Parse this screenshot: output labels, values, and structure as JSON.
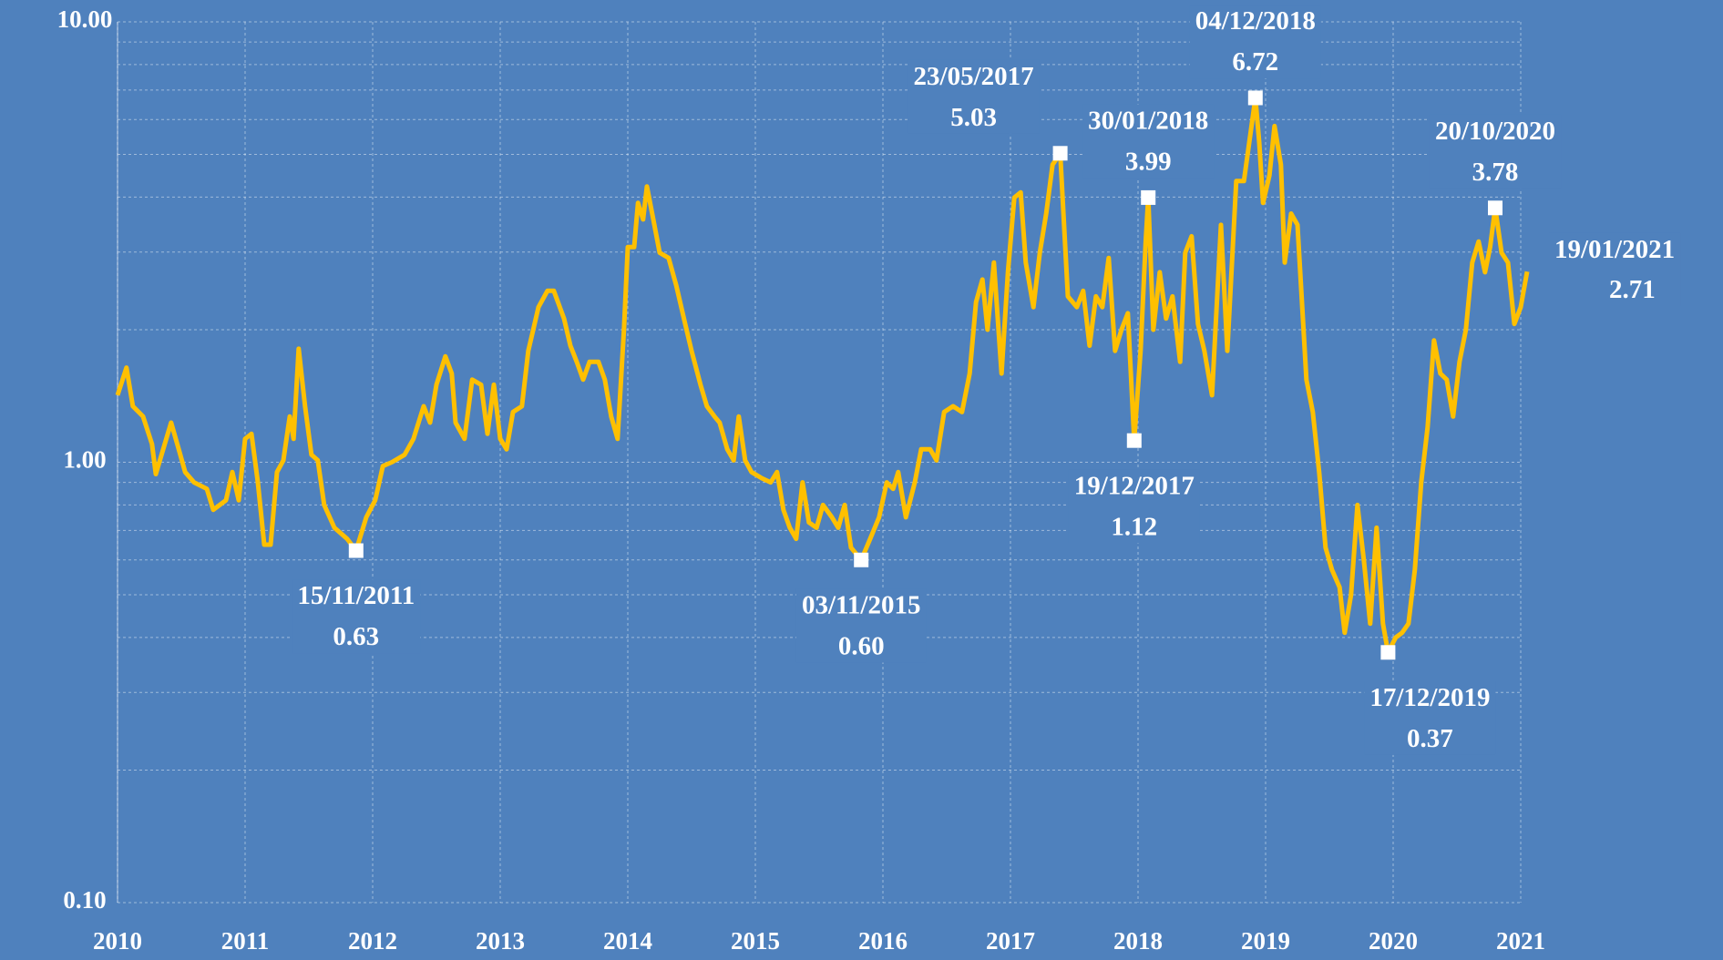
{
  "chart_data": {
    "type": "line",
    "log_y": true,
    "grid": true,
    "background": "#4f81bd",
    "xlim": [
      2010,
      2021.05
    ],
    "xticks": [
      2010,
      2011,
      2012,
      2013,
      2014,
      2015,
      2016,
      2017,
      2018,
      2019,
      2020,
      2021
    ],
    "ylim": [
      0.1,
      10
    ],
    "yticks": [
      {
        "value": 0.1,
        "label": "0.10"
      },
      {
        "value": 1,
        "label": "1.00"
      },
      {
        "value": 10,
        "label": "10.00"
      }
    ],
    "yminorticks": [
      0.2,
      0.3,
      0.4,
      0.5,
      0.6,
      0.7,
      0.8,
      0.9,
      2,
      3,
      4,
      5,
      6,
      7,
      8,
      9
    ],
    "x": [
      2010.0,
      2010.07,
      2010.12,
      2010.2,
      2010.27,
      2010.3,
      2010.37,
      2010.42,
      2010.48,
      2010.53,
      2010.6,
      2010.7,
      2010.75,
      2010.85,
      2010.9,
      2010.95,
      2011.0,
      2011.05,
      2011.1,
      2011.15,
      2011.2,
      2011.25,
      2011.3,
      2011.35,
      2011.38,
      2011.42,
      2011.47,
      2011.52,
      2011.57,
      2011.62,
      2011.7,
      2011.8,
      2011.87,
      2011.95,
      2012.02,
      2012.08,
      2012.15,
      2012.25,
      2012.32,
      2012.4,
      2012.45,
      2012.5,
      2012.57,
      2012.62,
      2012.65,
      2012.72,
      2012.78,
      2012.85,
      2012.9,
      2012.95,
      2013.0,
      2013.05,
      2013.1,
      2013.17,
      2013.22,
      2013.3,
      2013.37,
      2013.42,
      2013.5,
      2013.55,
      2013.6,
      2013.65,
      2013.7,
      2013.77,
      2013.82,
      2013.87,
      2013.92,
      2013.97,
      2014.0,
      2014.05,
      2014.08,
      2014.12,
      2014.15,
      2014.2,
      2014.25,
      2014.32,
      2014.38,
      2014.45,
      2014.5,
      2014.57,
      2014.62,
      2014.68,
      2014.72,
      2014.78,
      2014.83,
      2014.87,
      2014.92,
      2014.97,
      2015.05,
      2015.12,
      2015.17,
      2015.22,
      2015.27,
      2015.32,
      2015.37,
      2015.42,
      2015.48,
      2015.53,
      2015.6,
      2015.65,
      2015.7,
      2015.75,
      2015.83,
      2015.9,
      2015.97,
      2016.03,
      2016.08,
      2016.12,
      2016.18,
      2016.25,
      2016.3,
      2016.37,
      2016.42,
      2016.48,
      2016.55,
      2016.62,
      2016.68,
      2016.73,
      2016.78,
      2016.82,
      2016.87,
      2016.93,
      2016.98,
      2017.03,
      2017.08,
      2017.12,
      2017.18,
      2017.23,
      2017.28,
      2017.33,
      2017.39,
      2017.45,
      2017.52,
      2017.57,
      2017.62,
      2017.67,
      2017.72,
      2017.77,
      2017.82,
      2017.87,
      2017.92,
      2017.97,
      2018.02,
      2018.06,
      2018.08,
      2018.12,
      2018.17,
      2018.22,
      2018.27,
      2018.33,
      2018.37,
      2018.42,
      2018.47,
      2018.52,
      2018.58,
      2018.65,
      2018.7,
      2018.77,
      2018.83,
      2018.92,
      2018.95,
      2018.98,
      2019.03,
      2019.07,
      2019.12,
      2019.15,
      2019.2,
      2019.25,
      2019.32,
      2019.37,
      2019.42,
      2019.47,
      2019.52,
      2019.58,
      2019.62,
      2019.67,
      2019.72,
      2019.77,
      2019.82,
      2019.87,
      2019.92,
      2019.96,
      2020.02,
      2020.07,
      2020.12,
      2020.17,
      2020.22,
      2020.27,
      2020.32,
      2020.37,
      2020.42,
      2020.47,
      2020.52,
      2020.57,
      2020.62,
      2020.67,
      2020.72,
      2020.76,
      2020.8,
      2020.85,
      2020.9,
      2020.95,
      2021.0,
      2021.05
    ],
    "series": [
      {
        "color": "#ffc000",
        "values": [
          1.42,
          1.64,
          1.34,
          1.27,
          1.1,
          0.94,
          1.1,
          1.23,
          1.07,
          0.95,
          0.9,
          0.87,
          0.78,
          0.82,
          0.95,
          0.82,
          1.13,
          1.16,
          0.9,
          0.65,
          0.65,
          0.95,
          1.01,
          1.27,
          1.13,
          1.81,
          1.34,
          1.04,
          1.01,
          0.8,
          0.71,
          0.67,
          0.63,
          0.75,
          0.82,
          0.98,
          1.0,
          1.04,
          1.13,
          1.34,
          1.23,
          1.5,
          1.74,
          1.59,
          1.23,
          1.13,
          1.54,
          1.5,
          1.16,
          1.5,
          1.13,
          1.07,
          1.3,
          1.34,
          1.79,
          2.25,
          2.45,
          2.45,
          2.12,
          1.84,
          1.69,
          1.54,
          1.69,
          1.69,
          1.54,
          1.27,
          1.13,
          2.0,
          3.08,
          3.08,
          3.88,
          3.56,
          4.23,
          3.56,
          2.99,
          2.91,
          2.52,
          2.06,
          1.79,
          1.5,
          1.34,
          1.27,
          1.23,
          1.07,
          1.01,
          1.27,
          1.01,
          0.95,
          0.92,
          0.9,
          0.95,
          0.78,
          0.71,
          0.67,
          0.9,
          0.73,
          0.71,
          0.8,
          0.75,
          0.71,
          0.8,
          0.64,
          0.6,
          0.67,
          0.75,
          0.9,
          0.87,
          0.95,
          0.75,
          0.9,
          1.07,
          1.07,
          1.01,
          1.3,
          1.34,
          1.3,
          1.59,
          2.31,
          2.6,
          2.0,
          2.84,
          1.59,
          2.7,
          3.99,
          4.1,
          2.84,
          2.25,
          2.99,
          3.67,
          4.74,
          5.03,
          2.38,
          2.25,
          2.45,
          1.84,
          2.38,
          2.25,
          2.91,
          1.79,
          2.0,
          2.18,
          1.12,
          1.79,
          3.17,
          3.99,
          2.0,
          2.7,
          2.12,
          2.38,
          1.69,
          2.99,
          3.26,
          2.06,
          1.79,
          1.42,
          3.46,
          1.79,
          4.35,
          4.35,
          6.72,
          5.33,
          3.88,
          4.48,
          5.8,
          4.74,
          2.84,
          3.67,
          3.46,
          1.54,
          1.3,
          0.95,
          0.64,
          0.57,
          0.52,
          0.41,
          0.5,
          0.8,
          0.6,
          0.43,
          0.71,
          0.43,
          0.37,
          0.4,
          0.41,
          0.43,
          0.57,
          0.9,
          1.2,
          1.89,
          1.59,
          1.54,
          1.27,
          1.69,
          2.0,
          2.84,
          3.17,
          2.7,
          3.08,
          3.78,
          2.99,
          2.84,
          2.06,
          2.25,
          2.71
        ]
      }
    ],
    "annotations": [
      {
        "label": "15/11/2011",
        "x": 2011.87,
        "value": 0.63,
        "value_label": "0.63",
        "position": "below"
      },
      {
        "label": "03/11/2015",
        "x": 2015.83,
        "value": 0.6,
        "value_label": "0.60",
        "position": "below"
      },
      {
        "label": "23/05/2017",
        "x": 2017.39,
        "value": 5.03,
        "value_label": "5.03",
        "position": "above-left"
      },
      {
        "label": "19/12/2017",
        "x": 2017.97,
        "value": 1.12,
        "value_label": "1.12",
        "position": "below"
      },
      {
        "label": "30/01/2018",
        "x": 2018.08,
        "value": 3.99,
        "value_label": "3.99",
        "position": "above"
      },
      {
        "label": "04/12/2018",
        "x": 2018.92,
        "value": 6.72,
        "value_label": "6.72",
        "position": "above"
      },
      {
        "label": "17/12/2019",
        "x": 2019.96,
        "value": 0.37,
        "value_label": "0.37",
        "position": "below-right"
      },
      {
        "label": "20/10/2020",
        "x": 2020.8,
        "value": 3.78,
        "value_label": "3.78",
        "position": "above"
      },
      {
        "label": "19/01/2021",
        "x": 2021.05,
        "value": 2.71,
        "value_label": "2.71",
        "position": "right",
        "marker": false
      }
    ]
  }
}
